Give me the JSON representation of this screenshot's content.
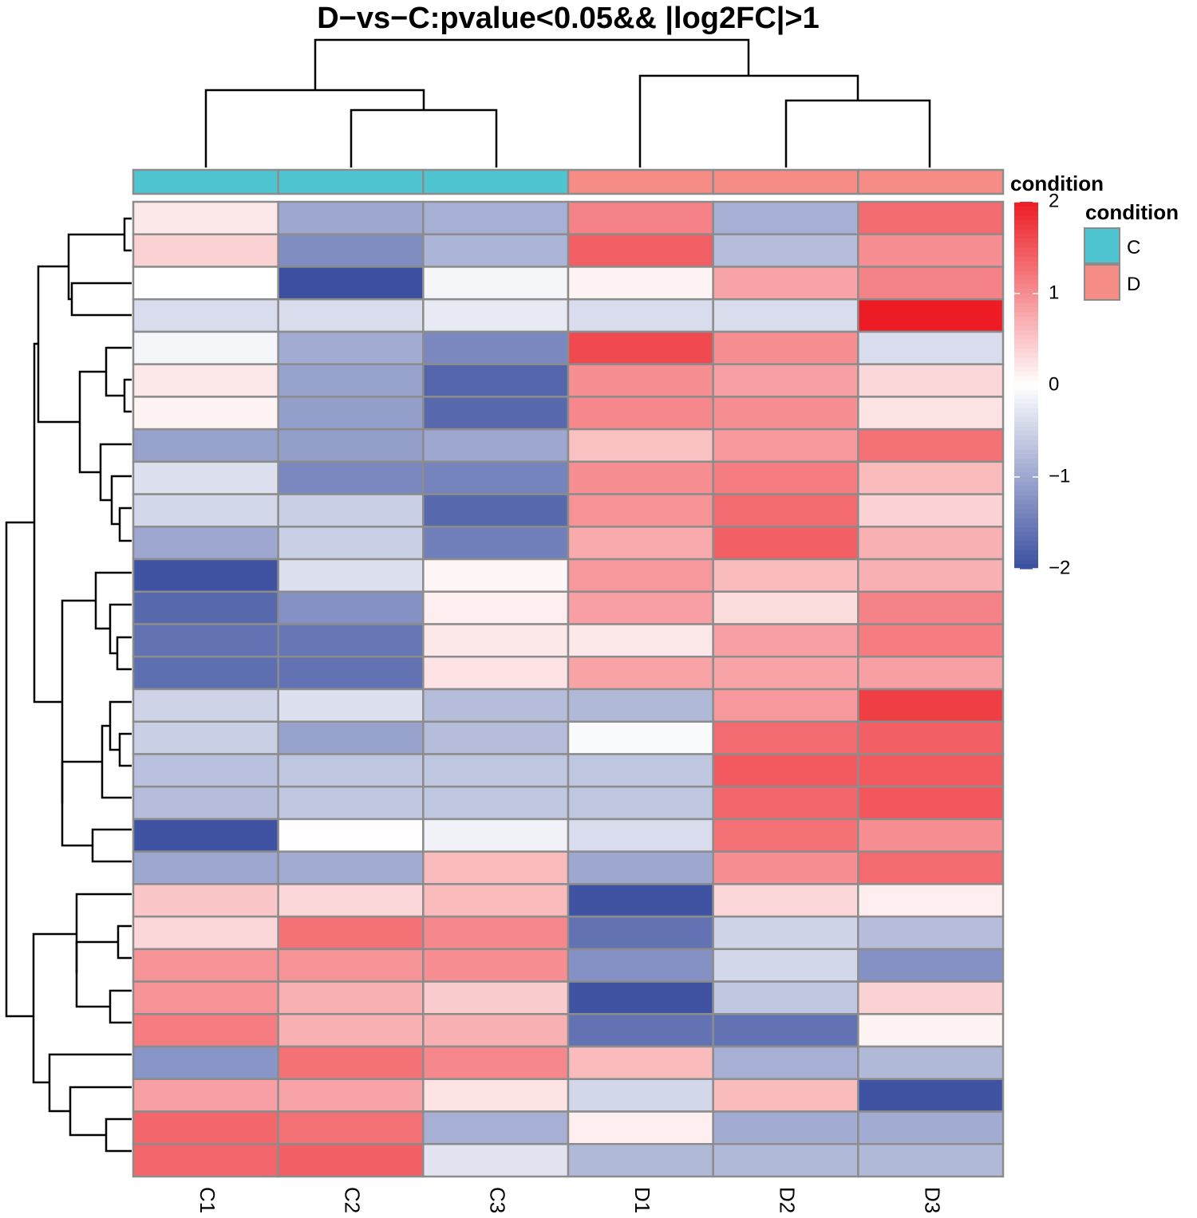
{
  "chart_data": {
    "type": "heatmap",
    "title": "D−vs−C:pvalue<0.05&& |log2FC|>1",
    "columns": [
      "C1",
      "C2",
      "C3",
      "D1",
      "D2",
      "D3"
    ],
    "column_annotation": {
      "name": "condition",
      "values": [
        "C",
        "C",
        "C",
        "D",
        "D",
        "D"
      ],
      "levels": [
        {
          "label": "C",
          "color": "#4fc5d1"
        },
        {
          "label": "D",
          "color": "#f58d86"
        }
      ]
    },
    "color_scale": {
      "range": [
        -2,
        2
      ],
      "ticks": [
        2,
        1,
        0,
        -1,
        -2
      ],
      "tick_labels": [
        "2",
        "1",
        "0",
        "−1",
        "−2"
      ],
      "low_color": "#3b4fa0",
      "mid_color": "#ffffff",
      "high_color": "#ed1c24"
    },
    "values": [
      [
        0.2,
        -1.0,
        -0.9,
        1.1,
        -0.9,
        1.3
      ],
      [
        0.4,
        -1.3,
        -0.85,
        1.4,
        -0.75,
        1.0
      ],
      [
        0.0,
        -2.0,
        -0.1,
        0.1,
        0.8,
        1.1
      ],
      [
        -0.4,
        -0.4,
        -0.25,
        -0.4,
        -0.4,
        2.0
      ],
      [
        -0.1,
        -0.95,
        -1.35,
        1.6,
        1.0,
        -0.4
      ],
      [
        0.2,
        -1.05,
        -1.75,
        1.0,
        0.85,
        0.35
      ],
      [
        0.1,
        -1.1,
        -1.7,
        1.05,
        1.0,
        0.25
      ],
      [
        -1.05,
        -1.1,
        -1.0,
        0.55,
        0.9,
        1.25
      ],
      [
        -0.35,
        -1.35,
        -1.4,
        1.0,
        1.15,
        0.6
      ],
      [
        -0.45,
        -0.55,
        -1.7,
        0.95,
        1.3,
        0.4
      ],
      [
        -1.0,
        -0.55,
        -1.45,
        0.75,
        1.4,
        0.7
      ],
      [
        -1.95,
        -0.35,
        0.08,
        0.9,
        0.6,
        0.7
      ],
      [
        -1.7,
        -1.25,
        0.15,
        0.85,
        0.3,
        1.1
      ],
      [
        -1.6,
        -1.55,
        0.2,
        0.2,
        0.85,
        1.15
      ],
      [
        -1.65,
        -1.6,
        0.25,
        0.8,
        0.8,
        0.85
      ],
      [
        -0.5,
        -0.35,
        -0.75,
        -0.8,
        0.9,
        1.7
      ],
      [
        -0.55,
        -1.05,
        -0.75,
        -0.05,
        1.3,
        1.4
      ],
      [
        -0.7,
        -0.65,
        -0.65,
        -0.65,
        1.45,
        1.45
      ],
      [
        -0.75,
        -0.65,
        -0.65,
        -0.65,
        1.35,
        1.5
      ],
      [
        -1.95,
        0.02,
        -0.15,
        -0.4,
        1.25,
        1.0
      ],
      [
        -1.0,
        -0.95,
        0.6,
        -1.0,
        1.0,
        1.3
      ],
      [
        0.5,
        0.35,
        0.6,
        -1.95,
        0.35,
        0.15
      ],
      [
        0.35,
        1.25,
        1.05,
        -1.6,
        -0.5,
        -0.75
      ],
      [
        0.95,
        0.95,
        1.0,
        -1.25,
        -0.45,
        -1.25
      ],
      [
        0.95,
        0.7,
        0.45,
        -1.95,
        -0.65,
        0.4
      ],
      [
        1.15,
        0.7,
        0.7,
        -1.6,
        -1.6,
        0.1
      ],
      [
        -1.2,
        1.25,
        1.05,
        0.6,
        -0.9,
        -0.8
      ],
      [
        0.85,
        0.8,
        0.25,
        -0.45,
        0.6,
        -1.95
      ],
      [
        1.35,
        1.25,
        -0.9,
        0.15,
        -0.95,
        -0.95
      ],
      [
        1.35,
        1.4,
        -0.3,
        -0.8,
        -0.8,
        -0.8
      ]
    ]
  },
  "legend": {
    "annotation_title": "condition",
    "scale_title": "condition"
  }
}
